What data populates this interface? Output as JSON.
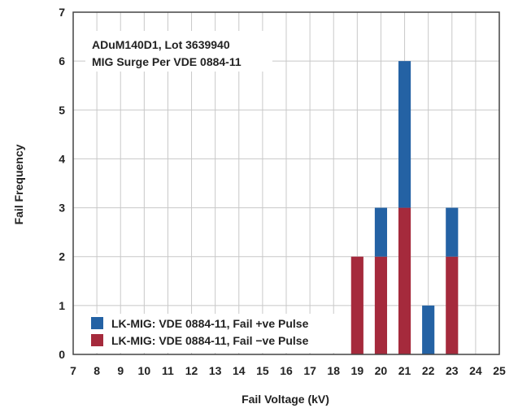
{
  "chart_data": {
    "type": "bar",
    "stacked": true,
    "annotation": [
      "ADuM140D1, Lot 3639940",
      "MIG Surge Per VDE 0884-11"
    ],
    "xlabel": "Fail Voltage (kV)",
    "ylabel": "Fail Frequency",
    "xlim": [
      7,
      25
    ],
    "ylim": [
      0,
      7
    ],
    "x_ticks": [
      7,
      8,
      9,
      10,
      11,
      12,
      13,
      14,
      15,
      16,
      17,
      18,
      19,
      20,
      21,
      22,
      23,
      24,
      25
    ],
    "y_ticks": [
      0,
      1,
      2,
      3,
      4,
      5,
      6,
      7
    ],
    "grid": true,
    "legend_position": "bottom-left",
    "categories": [
      19,
      20,
      21,
      22,
      23
    ],
    "series": [
      {
        "name": "LK-MIG: VDE 0884-11, Fail −ve Pulse",
        "color": "#a52a3c",
        "values": [
          2,
          2,
          3,
          0,
          2
        ]
      },
      {
        "name": "LK-MIG: VDE 0884-11, Fail +ve Pulse",
        "color": "#2462a4",
        "values": [
          0,
          1,
          3,
          1,
          1
        ]
      }
    ],
    "legend": [
      {
        "label": "LK-MIG: VDE 0884-11, Fail +ve Pulse",
        "color": "#2462a4"
      },
      {
        "label": "LK-MIG: VDE 0884-11, Fail −ve Pulse",
        "color": "#a52a3c"
      }
    ]
  }
}
